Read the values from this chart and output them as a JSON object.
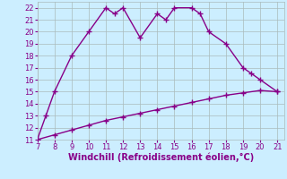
{
  "xlabel": "Windchill (Refroidissement éolien,°C)",
  "x_line1": [
    7,
    7.5,
    8,
    9,
    10,
    11,
    11.5,
    12,
    13,
    14,
    14.5,
    15,
    16,
    16.5,
    17,
    18,
    19,
    19.5,
    20,
    21
  ],
  "y_line1": [
    11,
    13,
    15,
    18,
    20,
    22,
    21.5,
    22,
    19.5,
    21.5,
    21,
    22,
    22,
    21.5,
    20,
    19,
    17,
    16.5,
    16,
    15
  ],
  "x_line2": [
    7,
    8,
    9,
    10,
    11,
    12,
    13,
    14,
    15,
    16,
    17,
    18,
    19,
    20,
    21
  ],
  "y_line2": [
    11,
    11.4,
    11.8,
    12.2,
    12.6,
    12.9,
    13.2,
    13.5,
    13.8,
    14.1,
    14.4,
    14.7,
    14.9,
    15.1,
    15.0
  ],
  "line_color": "#880088",
  "bg_color": "#cceeff",
  "grid_color": "#aabbbb",
  "xlim": [
    7,
    21.4
  ],
  "ylim": [
    11,
    22.5
  ],
  "xticks": [
    7,
    8,
    9,
    10,
    11,
    12,
    13,
    14,
    15,
    16,
    17,
    18,
    19,
    20,
    21
  ],
  "yticks": [
    11,
    12,
    13,
    14,
    15,
    16,
    17,
    18,
    19,
    20,
    21,
    22
  ],
  "marker": "+",
  "markersize": 4,
  "linewidth": 1.0,
  "xlabel_fontsize": 7,
  "tick_fontsize": 6,
  "tick_color": "#880088"
}
